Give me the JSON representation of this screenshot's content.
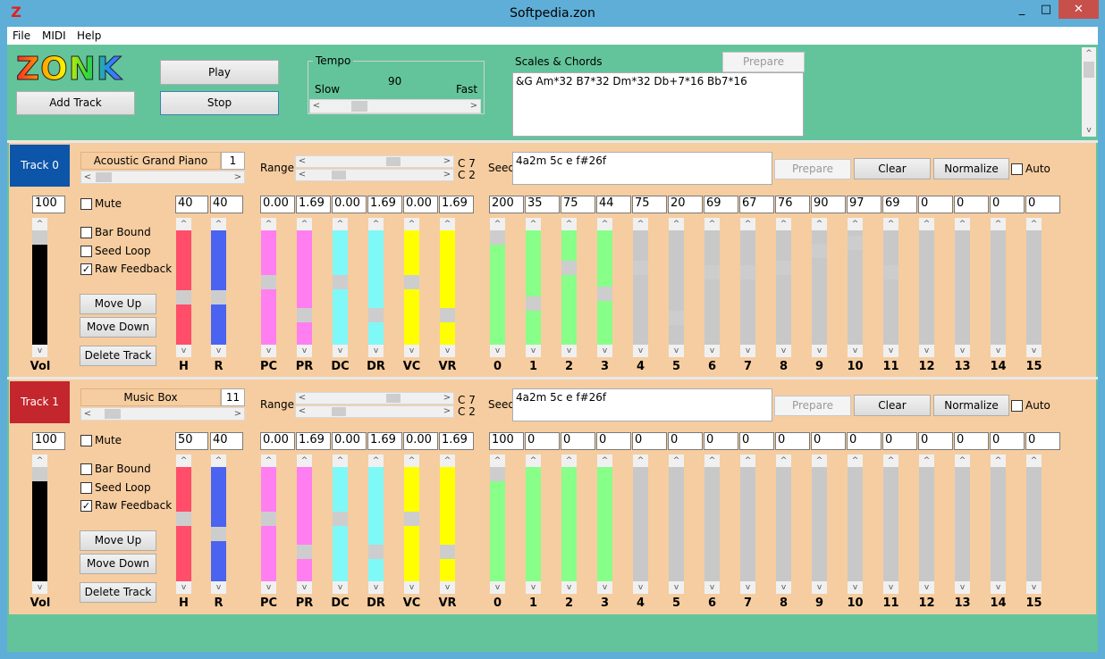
{
  "window": {
    "title": "Softpedia.zon",
    "minimize": "_",
    "maximize": "□",
    "close": "✕",
    "app_icon": "Z"
  },
  "menu": [
    {
      "label": "File"
    },
    {
      "label": "MIDI"
    },
    {
      "label": "Help"
    }
  ],
  "top": {
    "logo": "ZONK",
    "play_label": "Play",
    "stop_label": "Stop",
    "add_track_label": "Add Track",
    "tempo": {
      "legend": "Tempo",
      "value": "90",
      "slow": "Slow",
      "fast": "Fast",
      "level": 0.2
    },
    "scales": {
      "legend": "Scales & Chords",
      "prepare_label": "Prepare",
      "text": "&G Am*32 B7*32 Dm*32 Db+7*16 Bb7*16"
    }
  },
  "colors": {
    "track0": "#0c55a8",
    "track1": "#c4262e",
    "panel": "#f6cda0",
    "green_bg": "#63c49b",
    "H": "#ff4d6a",
    "R": "#4a63f0",
    "PC": "#ff7ff0",
    "PR": "#ff7ff0",
    "DC": "#7ff8f8",
    "DR": "#7ff8f8",
    "VC": "#ffff00",
    "VR": "#ffff00",
    "Vol": "#000000",
    "active": "#88ff88",
    "inactive": "#c8c8c8"
  },
  "tracks": [
    {
      "label": "Track  0",
      "instrument": "Acoustic Grand Piano",
      "program": "1",
      "range_label": "Range",
      "range_hi": "C 7",
      "range_lo": "C 2",
      "seed_label": "Seed",
      "seed": "4a2m 5c e f#26f",
      "prepare": "Prepare",
      "clear": "Clear",
      "normalize": "Normalize",
      "auto": "Auto",
      "mute": "Mute",
      "bar_bound": "Bar Bound",
      "seed_loop": "Seed Loop",
      "raw_feedback": "Raw Feedback",
      "move_up": "Move Up",
      "move_down": "Move Down",
      "delete_track": "Delete Track",
      "vol": {
        "value": "100",
        "label": "Vol"
      },
      "params": [
        {
          "key": "H",
          "value": "40",
          "label": "H"
        },
        {
          "key": "R",
          "value": "40",
          "label": "R"
        },
        {
          "key": "PC",
          "value": "0.00",
          "label": "PC"
        },
        {
          "key": "PR",
          "value": "1.69",
          "label": "PR"
        },
        {
          "key": "DC",
          "value": "0.00",
          "label": "DC"
        },
        {
          "key": "DR",
          "value": "1.69",
          "label": "DR"
        },
        {
          "key": "VC",
          "value": "0.00",
          "label": "VC"
        },
        {
          "key": "VR",
          "value": "1.69",
          "label": "VR"
        }
      ],
      "probs": [
        {
          "value": "200",
          "label": "0"
        },
        {
          "value": "35",
          "label": "1"
        },
        {
          "value": "75",
          "label": "2"
        },
        {
          "value": "44",
          "label": "3"
        },
        {
          "value": "75",
          "label": "4"
        },
        {
          "value": "20",
          "label": "5"
        },
        {
          "value": "69",
          "label": "6"
        },
        {
          "value": "67",
          "label": "7"
        },
        {
          "value": "76",
          "label": "8"
        },
        {
          "value": "90",
          "label": "9"
        },
        {
          "value": "97",
          "label": "10"
        },
        {
          "value": "69",
          "label": "11"
        },
        {
          "value": "0",
          "label": "12"
        },
        {
          "value": "0",
          "label": "13"
        },
        {
          "value": "0",
          "label": "14"
        },
        {
          "value": "0",
          "label": "15"
        }
      ]
    },
    {
      "label": "Track  1",
      "instrument": "Music Box",
      "program": "11",
      "range_label": "Range",
      "range_hi": "C 7",
      "range_lo": "C 2",
      "seed_label": "Seed",
      "seed": "4a2m 5c e f#26f",
      "prepare": "Prepare",
      "clear": "Clear",
      "normalize": "Normalize",
      "auto": "Auto",
      "mute": "Mute",
      "bar_bound": "Bar Bound",
      "seed_loop": "Seed Loop",
      "raw_feedback": "Raw Feedback",
      "move_up": "Move Up",
      "move_down": "Move Down",
      "delete_track": "Delete Track",
      "vol": {
        "value": "100",
        "label": "Vol"
      },
      "params": [
        {
          "key": "H",
          "value": "50",
          "label": "H"
        },
        {
          "key": "R",
          "value": "40",
          "label": "R"
        },
        {
          "key": "PC",
          "value": "0.00",
          "label": "PC"
        },
        {
          "key": "PR",
          "value": "1.69",
          "label": "PR"
        },
        {
          "key": "DC",
          "value": "0.00",
          "label": "DC"
        },
        {
          "key": "DR",
          "value": "1.69",
          "label": "DR"
        },
        {
          "key": "VC",
          "value": "0.00",
          "label": "VC"
        },
        {
          "key": "VR",
          "value": "1.69",
          "label": "VR"
        }
      ],
      "probs": [
        {
          "value": "100",
          "label": "0"
        },
        {
          "value": "0",
          "label": "1"
        },
        {
          "value": "0",
          "label": "2"
        },
        {
          "value": "0",
          "label": "3"
        },
        {
          "value": "0",
          "label": "4"
        },
        {
          "value": "0",
          "label": "5"
        },
        {
          "value": "0",
          "label": "6"
        },
        {
          "value": "0",
          "label": "7"
        },
        {
          "value": "0",
          "label": "8"
        },
        {
          "value": "0",
          "label": "9"
        },
        {
          "value": "0",
          "label": "10"
        },
        {
          "value": "0",
          "label": "11"
        },
        {
          "value": "0",
          "label": "12"
        },
        {
          "value": "0",
          "label": "13"
        },
        {
          "value": "0",
          "label": "14"
        },
        {
          "value": "0",
          "label": "15"
        }
      ]
    }
  ]
}
